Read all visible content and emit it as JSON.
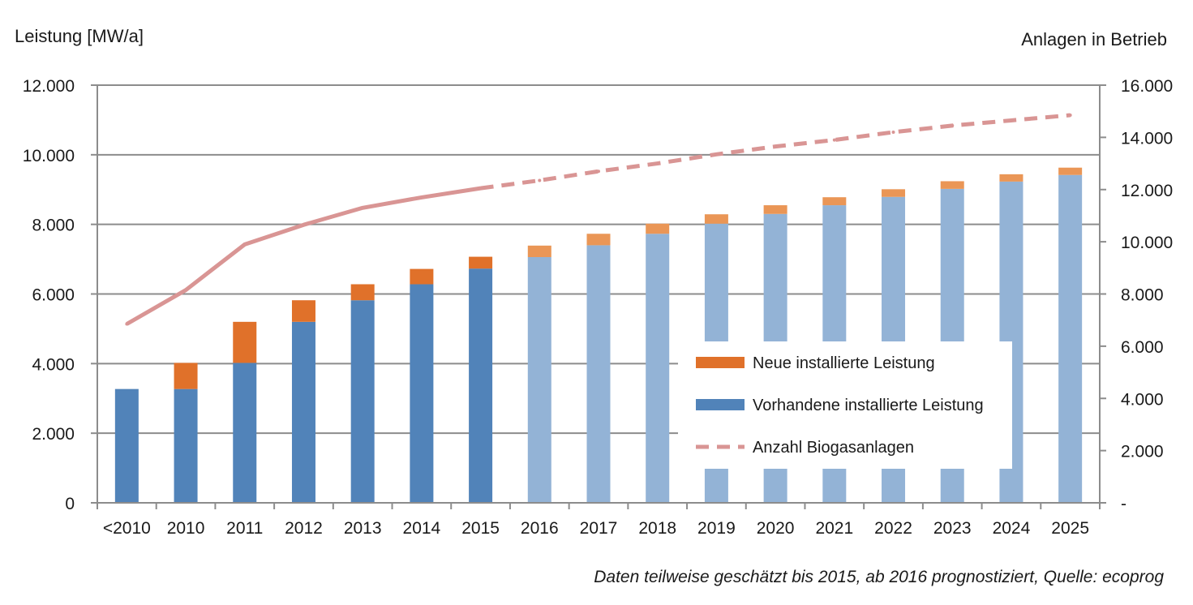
{
  "chart_data": {
    "type": "bar",
    "stacked": true,
    "ylabel": "Leistung [MW/a]",
    "y2label": "Anlagen  in Betrieb",
    "ylim": [
      0,
      12000
    ],
    "y2lim": [
      0,
      16000
    ],
    "yticks": [
      "0",
      "2.000",
      "4.000",
      "6.000",
      "8.000",
      "10.000",
      "12.000"
    ],
    "y2ticks": [
      "-",
      "2.000",
      "4.000",
      "6.000",
      "8.000",
      "10.000",
      "12.000",
      "14.000",
      "16.000"
    ],
    "categories": [
      "<2010",
      "2010",
      "2011",
      "2012",
      "2013",
      "2014",
      "2015",
      "2016",
      "2017",
      "2018",
      "2019",
      "2020",
      "2021",
      "2022",
      "2023",
      "2024",
      "2025"
    ],
    "forecast_from_index": 7,
    "series": [
      {
        "name": "Vorhandene installierte Leistung",
        "kind": "bar",
        "values": [
          3270,
          3270,
          4020,
          5200,
          5820,
          6280,
          6730,
          7060,
          7400,
          7730,
          8020,
          8300,
          8550,
          8790,
          9020,
          9230,
          9420
        ],
        "color": "#5183b9",
        "forecast_color": "#93b3d6"
      },
      {
        "name": "Neue installierte Leistung",
        "kind": "bar",
        "values": [
          0,
          750,
          1180,
          620,
          460,
          440,
          340,
          330,
          330,
          290,
          270,
          250,
          230,
          220,
          220,
          210,
          210
        ],
        "color": "#e0712a",
        "forecast_color": "#ea9656"
      },
      {
        "name": "Anzahl Biogasanlagen",
        "kind": "line",
        "axis": "right",
        "values": [
          6850,
          8150,
          9900,
          10650,
          11300,
          11700,
          12050,
          12350,
          12700,
          13000,
          13350,
          13650,
          13900,
          14200,
          14450,
          14650,
          14850
        ],
        "color": "#d99594"
      }
    ],
    "legend": {
      "position": "center-right",
      "items": [
        "Neue installierte Leistung",
        "Vorhandene installierte Leistung",
        "Anzahl Biogasanlagen"
      ]
    },
    "grid": "horizontal",
    "source_note": "Daten teilweise geschätzt bis 2015, ab 2016 prognostiziert, Quelle: ecoprog"
  }
}
